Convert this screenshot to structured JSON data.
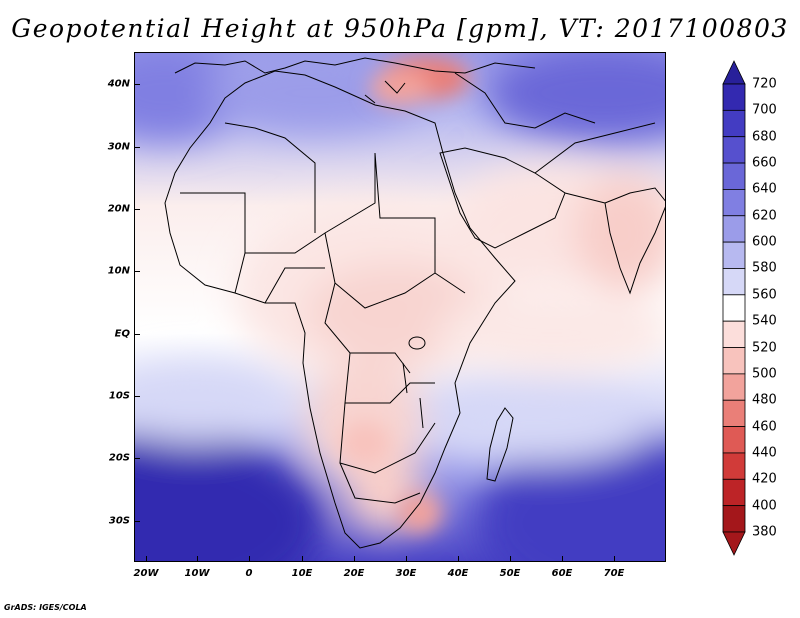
{
  "title": "Geopotential Height at 950hPa [gpm], VT: 2017100803",
  "credit": "GrADS: IGES/COLA",
  "map": {
    "lat_labels": [
      "40N",
      "30N",
      "20N",
      "10N",
      "EQ",
      "10S",
      "20S",
      "30S"
    ],
    "lon_labels": [
      "20W",
      "10W",
      "0",
      "10E",
      "20E",
      "30E",
      "40E",
      "50E",
      "60E",
      "70E"
    ]
  },
  "colorbar": {
    "levels": [
      "720",
      "700",
      "680",
      "660",
      "640",
      "620",
      "600",
      "580",
      "560",
      "540",
      "520",
      "500",
      "480",
      "460",
      "440",
      "420",
      "400",
      "380"
    ],
    "colors": [
      "#28209a",
      "#3329b0",
      "#433cc2",
      "#5650ce",
      "#6a67d8",
      "#807fe2",
      "#9b9ce9",
      "#b7b9f0",
      "#d6d8f7",
      "#ffffff",
      "#fcdedb",
      "#f8c3bd",
      "#f2a39c",
      "#ea7f78",
      "#df5a55",
      "#d13b39",
      "#bd2427",
      "#a4171b"
    ]
  }
}
